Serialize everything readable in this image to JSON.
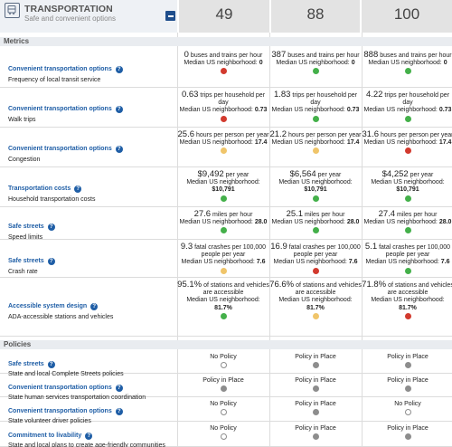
{
  "header": {
    "title": "TRANSPORTATION",
    "subtitle": "Safe and convenient options",
    "scores": [
      "49",
      "88",
      "100"
    ]
  },
  "sections": {
    "metrics": "Metrics",
    "policies": "Policies"
  },
  "metrics": [
    {
      "category": "Convenient transportation options",
      "subtitle": "Frequency of local transit service",
      "cells": [
        {
          "num": "0",
          "text": "buses and trains per hour",
          "median_label": "Median US neighborhood:",
          "median": "0",
          "status": "red"
        },
        {
          "num": "387",
          "text": "buses and trains per hour",
          "median_label": "Median US neighborhood:",
          "median": "0",
          "status": "green"
        },
        {
          "num": "888",
          "text": "buses and trains per hour",
          "median_label": "Median US neighborhood:",
          "median": "0",
          "status": "green"
        }
      ]
    },
    {
      "category": "Convenient transportation options",
      "subtitle": "Walk trips",
      "cells": [
        {
          "num": "0.63",
          "text": "trips per household per day",
          "median_label": "Median US neighborhood:",
          "median": "0.73",
          "status": "red"
        },
        {
          "num": "1.83",
          "text": "trips per household per day",
          "median_label": "Median US neighborhood:",
          "median": "0.73",
          "status": "green"
        },
        {
          "num": "4.22",
          "text": "trips per household per day",
          "median_label": "Median US neighborhood:",
          "median": "0.73",
          "status": "green"
        }
      ]
    },
    {
      "category": "Convenient transportation options",
      "subtitle": "Congestion",
      "cells": [
        {
          "num": "25.6",
          "text": "hours per person per year",
          "median_label": "Median US neighborhood:",
          "median": "17.4",
          "status": "yellow"
        },
        {
          "num": "21.2",
          "text": "hours per person per year",
          "median_label": "Median US neighborhood:",
          "median": "17.4",
          "status": "yellow"
        },
        {
          "num": "31.6",
          "text": "hours per person per year",
          "median_label": "Median US neighborhood:",
          "median": "17.4",
          "status": "red"
        }
      ]
    },
    {
      "category": "Transportation costs",
      "subtitle": "Household transportation costs",
      "cells": [
        {
          "num": "$9,492",
          "text": "per year",
          "median_label": "Median US neighborhood:",
          "median": "$10,791",
          "status": "green"
        },
        {
          "num": "$6,564",
          "text": "per year",
          "median_label": "Median US neighborhood:",
          "median": "$10,791",
          "status": "green"
        },
        {
          "num": "$4,252",
          "text": "per year",
          "median_label": "Median US neighborhood:",
          "median": "$10,791",
          "status": "green"
        }
      ]
    },
    {
      "category": "Safe streets",
      "subtitle": "Speed limits",
      "cells": [
        {
          "num": "27.6",
          "text": "miles per hour",
          "median_label": "Median US neighborhood:",
          "median": "28.0",
          "status": "green"
        },
        {
          "num": "25.1",
          "text": "miles per hour",
          "median_label": "Median US neighborhood:",
          "median": "28.0",
          "status": "green"
        },
        {
          "num": "27.4",
          "text": "miles per hour",
          "median_label": "Median US neighborhood:",
          "median": "28.0",
          "status": "green"
        }
      ]
    },
    {
      "category": "Safe streets",
      "subtitle": "Crash rate",
      "cells": [
        {
          "num": "9.3",
          "text": "fatal crashes per 100,000 people per year",
          "median_label": "Median US neighborhood:",
          "median": "7.6",
          "status": "yellow"
        },
        {
          "num": "16.9",
          "text": "fatal crashes per 100,000 people per year",
          "median_label": "Median US neighborhood:",
          "median": "7.6",
          "status": "red"
        },
        {
          "num": "5.1",
          "text": "fatal crashes per 100,000 people per year",
          "median_label": "Median US neighborhood:",
          "median": "7.6",
          "status": "green"
        }
      ]
    },
    {
      "category": "Accessible system design",
      "subtitle": "ADA-accessible stations and vehicles",
      "cells": [
        {
          "num": "95.1%",
          "text": "of stations and vehicles are accessible",
          "median_label": "Median US neighborhood:",
          "median": "81.7%",
          "status": "green"
        },
        {
          "num": "76.6%",
          "text": "of stations and vehicles are accessible",
          "median_label": "Median US neighborhood:",
          "median": "81.7%",
          "status": "yellow"
        },
        {
          "num": "71.8%",
          "text": "of stations and vehicles are accessible",
          "median_label": "Median US neighborhood:",
          "median": "81.7%",
          "status": "red"
        }
      ]
    }
  ],
  "policies": [
    {
      "category": "Safe streets",
      "subtitle": "State and local Complete Streets policies",
      "cells": [
        {
          "text": "No Policy",
          "status": "hollow"
        },
        {
          "text": "Policy in Place",
          "status": "gray"
        },
        {
          "text": "Policy in Place",
          "status": "gray"
        }
      ]
    },
    {
      "category": "Convenient transportation options",
      "subtitle": "State human services transportation coordination",
      "cells": [
        {
          "text": "Policy in Place",
          "status": "gray"
        },
        {
          "text": "Policy in Place",
          "status": "gray"
        },
        {
          "text": "Policy in Place",
          "status": "gray"
        }
      ]
    },
    {
      "category": "Convenient transportation options",
      "subtitle": "State volunteer driver policies",
      "cells": [
        {
          "text": "No Policy",
          "status": "hollow"
        },
        {
          "text": "Policy in Place",
          "status": "gray"
        },
        {
          "text": "No Policy",
          "status": "hollow"
        }
      ]
    },
    {
      "category": "Commitment to livability",
      "subtitle": "State and local plans to create age-friendly communities",
      "cells": [
        {
          "text": "No Policy",
          "status": "hollow"
        },
        {
          "text": "Policy in Place",
          "status": "gray"
        },
        {
          "text": "Policy in Place",
          "status": "gray"
        }
      ]
    }
  ],
  "colors": {
    "red": "#d23a2e",
    "green": "#44b04a",
    "yellow": "#f0c56a",
    "gray": "#8d8d8d",
    "link_blue": "#1f5ea6"
  },
  "icons": {
    "category": "bus-icon",
    "collapse": "collapse-icon",
    "help": "help-icon"
  }
}
